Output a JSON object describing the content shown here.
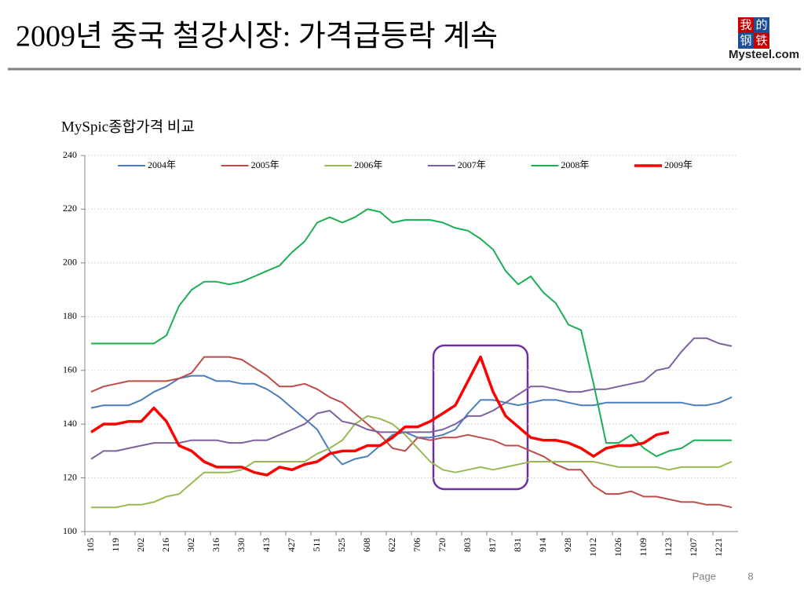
{
  "slide": {
    "title": "2009년 중국 철강시장: 가격급등락 계속",
    "logo": {
      "top_left": "我",
      "top_right": "的",
      "bottom_left": "钢",
      "bottom_right": "铁",
      "caption": "Mysteel.com"
    },
    "footer": {
      "label": "Page",
      "number": "8"
    }
  },
  "chart_data": {
    "type": "line",
    "title": "MySpic종합가격 비교",
    "categories": [
      "105",
      null,
      "119",
      null,
      "202",
      null,
      "216",
      null,
      "302",
      null,
      "316",
      null,
      "330",
      null,
      "413",
      null,
      "427",
      null,
      "511",
      null,
      "525",
      null,
      "608",
      null,
      "622",
      null,
      "706",
      null,
      "720",
      null,
      "803",
      null,
      "817",
      null,
      "831",
      null,
      "914",
      null,
      "928",
      null,
      "1012",
      null,
      "1026",
      null,
      "1109",
      null,
      "1123",
      null,
      "1207",
      null,
      "1221",
      null
    ],
    "series": [
      {
        "name": "2004年",
        "color": "#4a7ebb",
        "values": [
          146,
          147,
          147,
          147,
          149,
          152,
          154,
          157,
          158,
          158,
          156,
          156,
          155,
          155,
          153,
          150,
          146,
          142,
          138,
          130,
          125,
          127,
          128,
          132,
          136,
          137,
          135,
          135,
          136,
          138,
          144,
          149,
          149,
          148,
          147,
          148,
          149,
          149,
          148,
          147,
          147,
          148,
          148,
          148,
          148,
          148,
          148,
          148,
          147,
          147,
          148,
          150
        ]
      },
      {
        "name": "2005年",
        "color": "#be4b48",
        "values": [
          152,
          154,
          155,
          156,
          156,
          156,
          156,
          157,
          159,
          165,
          165,
          165,
          164,
          161,
          158,
          154,
          154,
          155,
          153,
          150,
          148,
          144,
          140,
          136,
          131,
          130,
          135,
          134,
          135,
          135,
          136,
          135,
          134,
          132,
          132,
          130,
          128,
          125,
          123,
          123,
          117,
          114,
          114,
          115,
          113,
          113,
          112,
          111,
          111,
          110,
          110,
          109
        ]
      },
      {
        "name": "2006年",
        "color": "#98b954",
        "values": [
          109,
          109,
          109,
          110,
          110,
          111,
          113,
          114,
          118,
          122,
          122,
          122,
          123,
          126,
          126,
          126,
          126,
          126,
          129,
          131,
          134,
          140,
          143,
          142,
          140,
          136,
          131,
          126,
          123,
          122,
          123,
          124,
          123,
          124,
          125,
          126,
          126,
          126,
          126,
          126,
          126,
          125,
          124,
          124,
          124,
          124,
          123,
          124,
          124,
          124,
          124,
          126
        ]
      },
      {
        "name": "2007年",
        "color": "#7d60a0",
        "values": [
          127,
          130,
          130,
          131,
          132,
          133,
          133,
          133,
          134,
          134,
          134,
          133,
          133,
          134,
          134,
          136,
          138,
          140,
          144,
          145,
          141,
          140,
          138,
          137,
          137,
          137,
          137,
          137,
          138,
          140,
          143,
          143,
          145,
          148,
          151,
          154,
          154,
          153,
          152,
          152,
          153,
          153,
          154,
          155,
          156,
          160,
          161,
          167,
          172,
          172,
          170,
          169
        ]
      },
      {
        "name": "2008年",
        "color": "#1aaf54",
        "values": [
          170,
          170,
          170,
          170,
          170,
          170,
          173,
          184,
          190,
          193,
          193,
          192,
          193,
          195,
          197,
          199,
          204,
          208,
          215,
          217,
          215,
          217,
          220,
          219,
          215,
          216,
          216,
          216,
          215,
          213,
          212,
          209,
          205,
          197,
          192,
          195,
          189,
          185,
          177,
          175,
          155,
          133,
          133,
          136,
          131,
          128,
          130,
          131,
          134,
          134,
          134,
          134
        ]
      },
      {
        "name": "2009年",
        "color": "#ff0000",
        "values": [
          137,
          140,
          140,
          141,
          141,
          146,
          141,
          132,
          130,
          126,
          124,
          124,
          124,
          122,
          121,
          124,
          123,
          125,
          126,
          129,
          130,
          130,
          132,
          132,
          135,
          139,
          139,
          141,
          144,
          147,
          156,
          165,
          152,
          143,
          139,
          135,
          134,
          134,
          133,
          131,
          128,
          131,
          132,
          132,
          133,
          136,
          137,
          null,
          null,
          null,
          null,
          null
        ]
      }
    ],
    "ylim": [
      100,
      240
    ],
    "yticks": [
      100,
      120,
      140,
      160,
      180,
      200,
      220,
      240
    ],
    "grid": true,
    "legend": "top",
    "highlight_series": "2009年"
  }
}
